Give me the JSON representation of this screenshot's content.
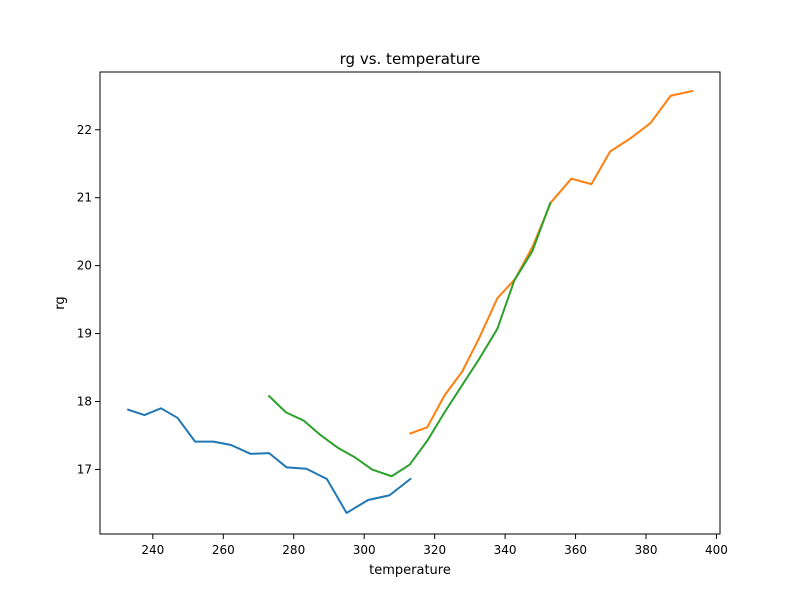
{
  "chart_data": {
    "type": "line",
    "title": "rg vs. temperature",
    "xlabel": "temperature",
    "ylabel": "rg",
    "xlim": [
      225,
      401
    ],
    "ylim": [
      16.05,
      22.85
    ],
    "xticks": [
      240,
      260,
      280,
      300,
      320,
      340,
      360,
      380,
      400
    ],
    "yticks": [
      17,
      18,
      19,
      20,
      21,
      22
    ],
    "grid": false,
    "legend": "none",
    "series": [
      {
        "color": "#1f77b4",
        "points": [
          [
            233,
            17.88
          ],
          [
            237.6,
            17.8
          ],
          [
            242.3,
            17.9
          ],
          [
            247,
            17.76
          ],
          [
            252,
            17.41
          ],
          [
            257.2,
            17.41
          ],
          [
            262.2,
            17.36
          ],
          [
            267.7,
            17.23
          ],
          [
            273,
            17.24
          ],
          [
            278,
            17.03
          ],
          [
            283.6,
            17.01
          ],
          [
            289.4,
            16.86
          ],
          [
            295,
            16.36
          ],
          [
            301.1,
            16.55
          ],
          [
            307.2,
            16.62
          ],
          [
            313.1,
            16.86
          ]
        ]
      },
      {
        "color": "#ff7f0e",
        "points": [
          [
            313.1,
            17.53
          ],
          [
            317.9,
            17.62
          ],
          [
            322.8,
            18.09
          ],
          [
            327.8,
            18.44
          ],
          [
            332.6,
            18.93
          ],
          [
            337.8,
            19.52
          ],
          [
            342.8,
            19.8
          ],
          [
            347.8,
            20.28
          ],
          [
            353,
            20.93
          ],
          [
            358.8,
            21.28
          ],
          [
            364.5,
            21.2
          ],
          [
            369.8,
            21.68
          ],
          [
            375.5,
            21.87
          ],
          [
            381.3,
            22.1
          ],
          [
            387,
            22.5
          ],
          [
            393.1,
            22.57
          ]
        ]
      },
      {
        "color": "#2ca02c",
        "points": [
          [
            273,
            18.08
          ],
          [
            277.8,
            17.84
          ],
          [
            282.8,
            17.72
          ],
          [
            287.5,
            17.51
          ],
          [
            292.5,
            17.32
          ],
          [
            297.3,
            17.18
          ],
          [
            302.2,
            17.0
          ],
          [
            307.8,
            16.9
          ],
          [
            312.9,
            17.07
          ],
          [
            318,
            17.43
          ],
          [
            322.8,
            17.84
          ],
          [
            327.8,
            18.24
          ],
          [
            332.8,
            18.64
          ],
          [
            337.8,
            19.07
          ],
          [
            342.6,
            19.78
          ],
          [
            347.7,
            20.21
          ],
          [
            352.8,
            20.92
          ]
        ]
      }
    ]
  }
}
